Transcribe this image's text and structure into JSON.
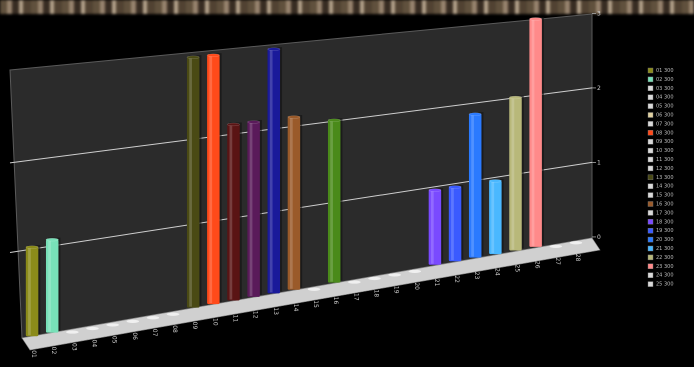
{
  "chart_data": {
    "type": "bar",
    "title": "",
    "xlabel": "",
    "ylabel": "",
    "ylim": [
      0,
      3
    ],
    "y_ticks": [
      0,
      1,
      2,
      3
    ],
    "grid": true,
    "legend_position": "right",
    "categories": [
      "01",
      "02",
      "03",
      "04",
      "05",
      "06",
      "07",
      "08",
      "09",
      "10",
      "11",
      "12",
      "13",
      "14",
      "15",
      "16",
      "17",
      "18",
      "19",
      "20",
      "21",
      "22",
      "23",
      "24",
      "25",
      "26",
      "27",
      "28"
    ],
    "values": [
      1.0,
      1.05,
      0.0,
      0.0,
      0.0,
      0.0,
      0.0,
      0.0,
      2.95,
      2.95,
      2.1,
      2.1,
      2.95,
      2.1,
      0.0,
      2.0,
      0.0,
      0.0,
      0.0,
      0.0,
      0.95,
      0.95,
      1.85,
      0.95,
      2.0,
      3.0,
      0.0,
      0.0
    ],
    "colors": [
      "#8b8b1a",
      "#78e0b8",
      "#d9d9d9",
      "#d9d9d9",
      "#d9d9d9",
      "#d9d9d9",
      "#d9d9d9",
      "#d9d9d9",
      "#4a4a14",
      "#ff4a1a",
      "#5a1414",
      "#5a1a5a",
      "#1a1a9a",
      "#9a5a2a",
      "#d9d9d9",
      "#4a8a1a",
      "#d9d9d9",
      "#d9d9d9",
      "#d9d9d9",
      "#d9d9d9",
      "#7a4aff",
      "#3a5aff",
      "#2a7aff",
      "#4ab8ff",
      "#b8b87a",
      "#ff8a8a",
      "#d9d9d9",
      "#d9d9d9"
    ],
    "legend": [
      "01 300",
      "02 300",
      "03 300",
      "04 300",
      "05 300",
      "06 300",
      "07 300",
      "08 300",
      "09 300",
      "10 300",
      "11 300",
      "12 300",
      "13 300",
      "14 300",
      "15 300",
      "16 300",
      "17 300",
      "18 300",
      "19 300",
      "20 300",
      "21 300",
      "22 300",
      "23 300",
      "24 300",
      "25 300"
    ],
    "legend_colors": [
      "#8b8b1a",
      "#78e0b8",
      "#d9d9d9",
      "#d9d9d9",
      "#d9d9d9",
      "#e0d0a0",
      "#d9d9d9",
      "#ff4a1a",
      "#d9d9d9",
      "#d9d9d9",
      "#d9d9d9",
      "#d9d9d9",
      "#4a4a14",
      "#d9d9d9",
      "#d9d9d9",
      "#9a5a2a",
      "#d9d9d9",
      "#7a4aff",
      "#3a5aff",
      "#2a7aff",
      "#4ab8ff",
      "#b8b87a",
      "#ff8a8a",
      "#d9d9d9",
      "#d9d9d9"
    ]
  }
}
